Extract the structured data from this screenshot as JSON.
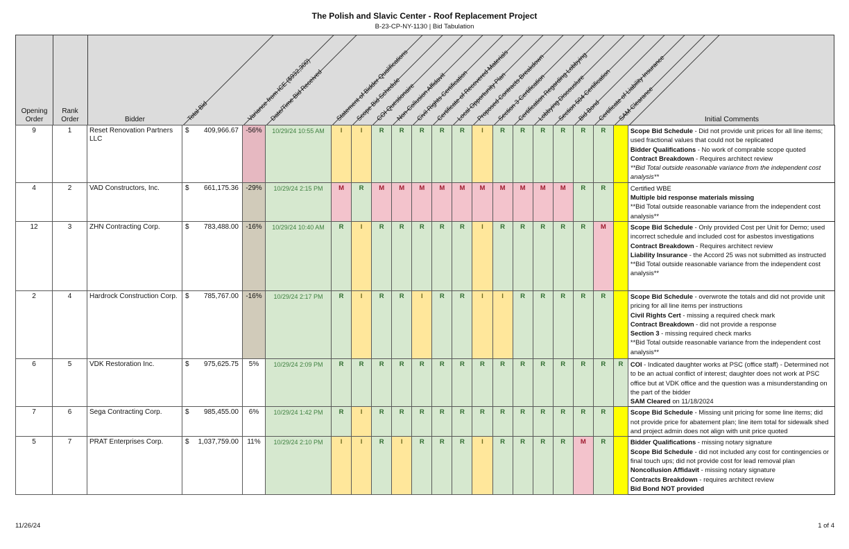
{
  "title": "The Polish and Slavic Center - Roof Replacement Project",
  "subtitle": "B-23-CP-NY-1130 | Bid Tabulation",
  "footer": {
    "date": "11/26/24",
    "page": "1 of 4"
  },
  "header": {
    "static_columns": [
      "Opening Order",
      "Rank Order",
      "Bidder"
    ],
    "angled_columns": [
      "Total Bid",
      "Variance from ICE ($932,300)",
      "Date/Time Bid Received",
      "Statement of Bidder Qualifications",
      "Scope Bid Schedule",
      "COI Questionaire",
      "Non-Collusion Affidavit",
      "Civil Rights Certification",
      "Certificate of Recovered Materials",
      "Local Opportunity Plan",
      "Proposed Contracts Breakdown",
      "Section 3 Certification",
      "Certification Regarding Lobbying",
      "Lobbying Discouslure",
      "Section 504 Certification",
      "Bid Bond",
      "Certificate of Liability Insurance",
      "SAM Clearance"
    ],
    "comments_column": "Initial Comments"
  },
  "colors": {
    "header_bg": "#dcdcdc",
    "status_received_bg": "#d6e8cf",
    "status_received_text": "#2f6b2f",
    "status_incomplete_bg": "#ffe79b",
    "status_incomplete_text": "#6f6a20",
    "status_missing_bg": "#f3c3cc",
    "status_missing_text": "#9e1c30",
    "sam_pending_bg": "#ffff00",
    "variance_high_bg": "#e6b8c1",
    "variance_mid_bg": "#d1cbba",
    "date_text": "#3f8040"
  },
  "rows": [
    {
      "opening_order": "9",
      "rank_order": "1",
      "bidder": "Reset Renovation Partners LLC",
      "currency": "$",
      "total_bid": "409,966.67",
      "variance": "-56%",
      "variance_fill": "pink",
      "date_received": "10/29/24 10:55 AM",
      "statuses": [
        "I",
        "I",
        "R",
        "R",
        "R",
        "R",
        "R",
        "I",
        "R",
        "R",
        "R",
        "R",
        "R",
        "R",
        ""
      ],
      "comments": [
        [
          {
            "t": "Scope Bid Schedule",
            "b": true
          },
          {
            "t": " - Did not provide unit prices for all line items; used fractional values that could not be replicated"
          }
        ],
        [
          {
            "t": "Bidder Qualifications",
            "b": true
          },
          {
            "t": " - No work of comprable scope quoted"
          }
        ],
        [
          {
            "t": "Contract Breakdown",
            "b": true
          },
          {
            "t": " - Requires architect review"
          }
        ],
        [
          {
            "t": "**Bid Total outside reasonable variance from the independent cost analysis**",
            "i": true
          }
        ]
      ]
    },
    {
      "opening_order": "4",
      "rank_order": "2",
      "bidder": "VAD Constructors, Inc.",
      "currency": "$",
      "total_bid": "661,175.36",
      "variance": "-29%",
      "variance_fill": "tan",
      "date_received": "10/29/24 2:15 PM",
      "statuses": [
        "M",
        "R",
        "M",
        "M",
        "M",
        "M",
        "M",
        "M",
        "M",
        "M",
        "M",
        "M",
        "R",
        "R",
        ""
      ],
      "comments": [
        [
          {
            "t": "Certified WBE"
          }
        ],
        [
          {
            "t": "Multiple bid response materials missing",
            "b": true
          }
        ],
        [
          {
            "t": "**Bid Total outside reasonable variance from the independent cost analysis**"
          }
        ]
      ]
    },
    {
      "opening_order": "12",
      "rank_order": "3",
      "bidder": "ZHN Contracting Corp.",
      "currency": "$",
      "total_bid": "783,488.00",
      "variance": "-16%",
      "variance_fill": "tan",
      "date_received": "10/29/24 10:40 AM",
      "statuses": [
        "R",
        "I",
        "R",
        "R",
        "R",
        "R",
        "R",
        "I",
        "R",
        "R",
        "R",
        "R",
        "R",
        "M",
        ""
      ],
      "comments": [
        [
          {
            "t": "Scope Bid Schedule",
            "b": true
          },
          {
            "t": " - Only provided Cost per Unit for Demo; used incorrect schedule and included cost for asbestos investigations"
          }
        ],
        [
          {
            "t": "Contract Breakdown",
            "b": true
          },
          {
            "t": " - Requires architect review"
          }
        ],
        [
          {
            "t": "Liability Insurance",
            "b": true
          },
          {
            "t": " - the Accord 25 was not submitted as instructed"
          }
        ],
        [
          {
            "t": "**Bid Total outside reasonable variance from the independent cost analysis**"
          }
        ]
      ]
    },
    {
      "opening_order": "2",
      "rank_order": "4",
      "bidder": "Hardrock Construction Corp.",
      "currency": "$",
      "total_bid": "785,767.00",
      "variance": "-16%",
      "variance_fill": "tan",
      "date_received": "10/29/24 2:17 PM",
      "statuses": [
        "R",
        "I",
        "R",
        "R",
        "I",
        "R",
        "R",
        "I",
        "I",
        "R",
        "R",
        "R",
        "R",
        "R",
        ""
      ],
      "comments": [
        [
          {
            "t": "Scope Bid Schedule",
            "b": true
          },
          {
            "t": " - overwrote the totals and did not provide unit pricing for all line items per instructions"
          }
        ],
        [
          {
            "t": "Civil Rights Cert",
            "b": true
          },
          {
            "t": " - missing a required check mark"
          }
        ],
        [
          {
            "t": "Contract Breakdown",
            "b": true
          },
          {
            "t": " - did not provide a response"
          }
        ],
        [
          {
            "t": "Section 3",
            "b": true
          },
          {
            "t": " - missing required check marks"
          }
        ],
        [
          {
            "t": "**Bid Total outside reasonable variance from the independent cost analysis**"
          }
        ]
      ]
    },
    {
      "opening_order": "6",
      "rank_order": "5",
      "bidder": "VDK Restoration Inc.",
      "currency": "$",
      "total_bid": "975,625.75",
      "variance": "5%",
      "variance_fill": "none",
      "date_received": "10/29/24 2:09 PM",
      "statuses": [
        "R",
        "R",
        "R",
        "R",
        "R",
        "R",
        "R",
        "R",
        "R",
        "R",
        "R",
        "R",
        "R",
        "R",
        "R"
      ],
      "comments": [
        [
          {
            "t": "COI",
            "b": true
          },
          {
            "t": " - Indicated daughter works at PSC (office staff) - Determined not to be an actual conflict of interest; daughter does not work at PSC office but at VDK office and the question was a misunderstanding on the part of the bidder"
          }
        ],
        [
          {
            "t": "SAM Cleared",
            "b": true
          },
          {
            "t": " on 11/18/2024"
          }
        ]
      ]
    },
    {
      "opening_order": "7",
      "rank_order": "6",
      "bidder": "Sega Contracting Corp.",
      "currency": "$",
      "total_bid": "985,455.00",
      "variance": "6%",
      "variance_fill": "none",
      "date_received": "10/29/24 1:42 PM",
      "statuses": [
        "R",
        "I",
        "R",
        "R",
        "R",
        "R",
        "R",
        "R",
        "R",
        "R",
        "R",
        "R",
        "R",
        "R",
        ""
      ],
      "comments": [
        [
          {
            "t": "Scope Bid Schedule",
            "b": true
          },
          {
            "t": " - Missing unit pricing for some line items; did not provide price for abatement plan; line item total for sidewalk shed and project admin does not align with unit price quoted"
          }
        ]
      ]
    },
    {
      "opening_order": "5",
      "rank_order": "7",
      "bidder": "PRAT Enterprises Corp.",
      "currency": "$",
      "total_bid": "1,037,759.00",
      "variance": "11%",
      "variance_fill": "none",
      "date_received": "10/29/24 2:10 PM",
      "statuses": [
        "I",
        "I",
        "R",
        "I",
        "R",
        "R",
        "R",
        "I",
        "R",
        "R",
        "R",
        "R",
        "M",
        "R",
        ""
      ],
      "comments": [
        [
          {
            "t": "Bidder Qualifications",
            "b": true
          },
          {
            "t": " - missing notary signature"
          }
        ],
        [
          {
            "t": "Scope Bid Schedule",
            "b": true
          },
          {
            "t": " - did not included any cost for contingencies or final touch ups; did not provide cost for lead removal plan"
          }
        ],
        [
          {
            "t": "Noncollusion Affidavit",
            "b": true
          },
          {
            "t": " - missing notary signature"
          }
        ],
        [
          {
            "t": "Contracts Breakdown",
            "b": true
          },
          {
            "t": " - requires architect review"
          }
        ],
        [
          {
            "t": "Bid Bond NOT provided",
            "b": true
          }
        ]
      ]
    }
  ]
}
